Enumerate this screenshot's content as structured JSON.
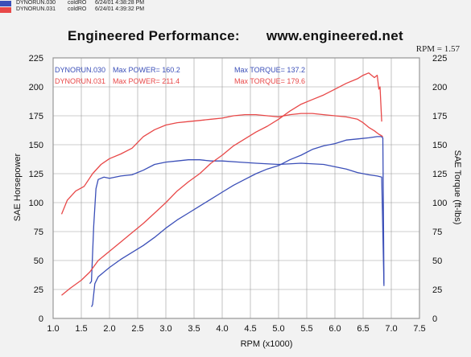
{
  "header": {
    "runs": [
      {
        "file": "DYNORUN.030",
        "cond": "coldRO",
        "date": "6/24/01 4:38:28 PM",
        "color": "#3b4fb8"
      },
      {
        "file": "DYNORUN.031",
        "cond": "coldRO",
        "date": "6/24/01 4:39:32 PM",
        "color": "#e84848"
      }
    ]
  },
  "title": {
    "left": "Engineered Performance:",
    "right": "www.engineered.net"
  },
  "rpm_readout": "RPM = 1.57",
  "legend": [
    {
      "run": "DYNORUN.030",
      "max_power": "Max POWER= 160.2",
      "max_torque": "Max TORQUE= 137.2",
      "color": "#3b4fb8"
    },
    {
      "run": "DYNORUN.031",
      "max_power": "Max POWER= 211.4",
      "max_torque": "Max TORQUE= 179.6",
      "color": "#e84848"
    }
  ],
  "chart_data": {
    "type": "line",
    "xlabel": "RPM (x1000)",
    "ylabel": "SAE Horsepower",
    "y2label": "SAE Torque (ft-lbs)",
    "xlim": [
      1.0,
      7.5
    ],
    "ylim": [
      0,
      225
    ],
    "y2lim": [
      0,
      225
    ],
    "xticks": [
      "1.0",
      "1.5",
      "2.0",
      "2.5",
      "3.0",
      "3.5",
      "4.0",
      "4.5",
      "5.0",
      "5.5",
      "6.0",
      "6.5",
      "7.0",
      "7.5"
    ],
    "yticks": [
      "0",
      "25",
      "50",
      "75",
      "100",
      "125",
      "150",
      "175",
      "200",
      "225"
    ],
    "grid": true,
    "series": [
      {
        "name": "DYNORUN.030",
        "quantity": "horsepower",
        "color": "#3b4fb8",
        "x": [
          1.68,
          1.7,
          1.74,
          1.8,
          2.0,
          2.2,
          2.4,
          2.6,
          2.8,
          3.0,
          3.2,
          3.4,
          3.6,
          3.8,
          4.0,
          4.2,
          4.4,
          4.6,
          4.8,
          5.0,
          5.2,
          5.4,
          5.6,
          5.8,
          6.0,
          6.2,
          6.4,
          6.6,
          6.75,
          6.82,
          6.85,
          6.87
        ],
        "y": [
          10,
          12,
          30,
          36,
          44,
          51,
          57,
          63,
          70,
          78,
          85,
          91,
          97,
          103,
          109,
          115,
          120,
          125,
          129,
          132,
          137,
          141,
          146,
          149,
          151,
          154,
          155,
          156,
          157,
          157,
          156,
          30
        ]
      },
      {
        "name": "DYNORUN.030",
        "quantity": "torque",
        "color": "#3b4fb8",
        "x": [
          1.65,
          1.68,
          1.72,
          1.76,
          1.8,
          1.9,
          2.0,
          2.2,
          2.4,
          2.6,
          2.8,
          3.0,
          3.2,
          3.4,
          3.6,
          3.8,
          4.0,
          4.3,
          4.6,
          5.0,
          5.4,
          5.8,
          6.0,
          6.2,
          6.4,
          6.6,
          6.75,
          6.83,
          6.87
        ],
        "y": [
          30,
          32,
          80,
          112,
          120,
          122,
          121,
          123,
          124,
          128,
          133,
          135,
          136,
          137,
          137,
          136,
          136,
          135,
          134,
          133,
          134,
          133,
          131,
          129,
          126,
          124,
          123,
          122,
          28
        ]
      },
      {
        "name": "DYNORUN.031",
        "quantity": "horsepower",
        "color": "#e84848",
        "x": [
          1.15,
          1.3,
          1.5,
          1.65,
          1.8,
          2.0,
          2.2,
          2.4,
          2.6,
          2.8,
          3.0,
          3.2,
          3.4,
          3.6,
          3.8,
          4.0,
          4.2,
          4.4,
          4.6,
          4.8,
          5.0,
          5.2,
          5.4,
          5.6,
          5.8,
          6.0,
          6.2,
          6.4,
          6.5,
          6.6,
          6.7,
          6.75,
          6.78,
          6.8,
          6.83
        ],
        "y": [
          20,
          26,
          33,
          40,
          50,
          58,
          66,
          74,
          82,
          91,
          100,
          110,
          118,
          125,
          134,
          141,
          149,
          155,
          161,
          166,
          172,
          179,
          185,
          189,
          193,
          198,
          203,
          207,
          210,
          212,
          208,
          210,
          198,
          200,
          170
        ]
      },
      {
        "name": "DYNORUN.031",
        "quantity": "torque",
        "color": "#e84848",
        "x": [
          1.15,
          1.25,
          1.4,
          1.55,
          1.7,
          1.85,
          2.0,
          2.2,
          2.4,
          2.6,
          2.8,
          3.0,
          3.2,
          3.4,
          3.6,
          3.8,
          4.0,
          4.2,
          4.4,
          4.6,
          4.8,
          5.0,
          5.2,
          5.4,
          5.6,
          5.8,
          6.0,
          6.2,
          6.4,
          6.5,
          6.6,
          6.7,
          6.78,
          6.82,
          6.85
        ],
        "y": [
          90,
          102,
          110,
          114,
          125,
          133,
          138,
          142,
          147,
          157,
          163,
          167,
          169,
          170,
          171,
          172,
          173,
          175,
          176,
          176,
          175,
          174,
          176,
          177,
          177,
          176,
          175,
          174,
          172,
          169,
          165,
          162,
          159,
          158,
          157
        ]
      }
    ]
  }
}
